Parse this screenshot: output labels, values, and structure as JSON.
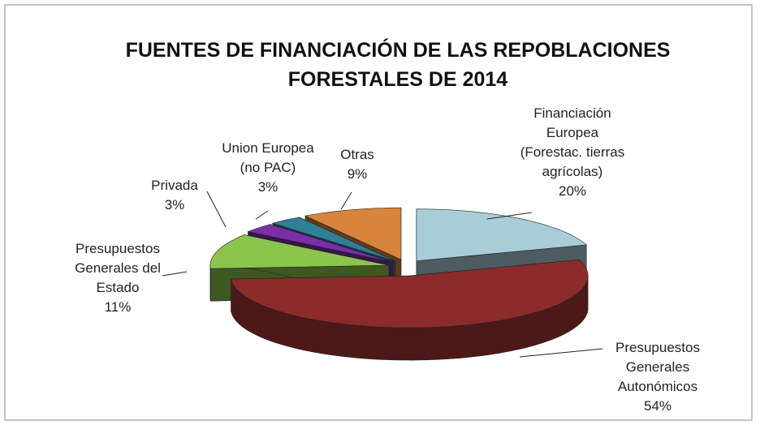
{
  "chart_data": {
    "type": "pie3d",
    "title": "FUENTES DE FINANCIACIÓN DE LAS REPOBLACIONES\nFORESTALES DE 2014",
    "categories": [
      "Financiación\nEuropea\n(Forestac. tierras\nagrícolas)",
      "Presupuestos\nGenerales\nAutonómicos",
      "Presupuestos\nGenerales del\nEstado",
      "Privada",
      "Union Europea\n(no PAC)",
      "Otras"
    ],
    "values": [
      20,
      54,
      11,
      3,
      3,
      9
    ],
    "value_labels": [
      "20%",
      "54%",
      "11%",
      "3%",
      "3%",
      "9%"
    ],
    "colors": [
      "#a8cdd8",
      "#8c2b2b",
      "#8cc44e",
      "#7a2ea8",
      "#2f7f95",
      "#d8843c"
    ]
  }
}
